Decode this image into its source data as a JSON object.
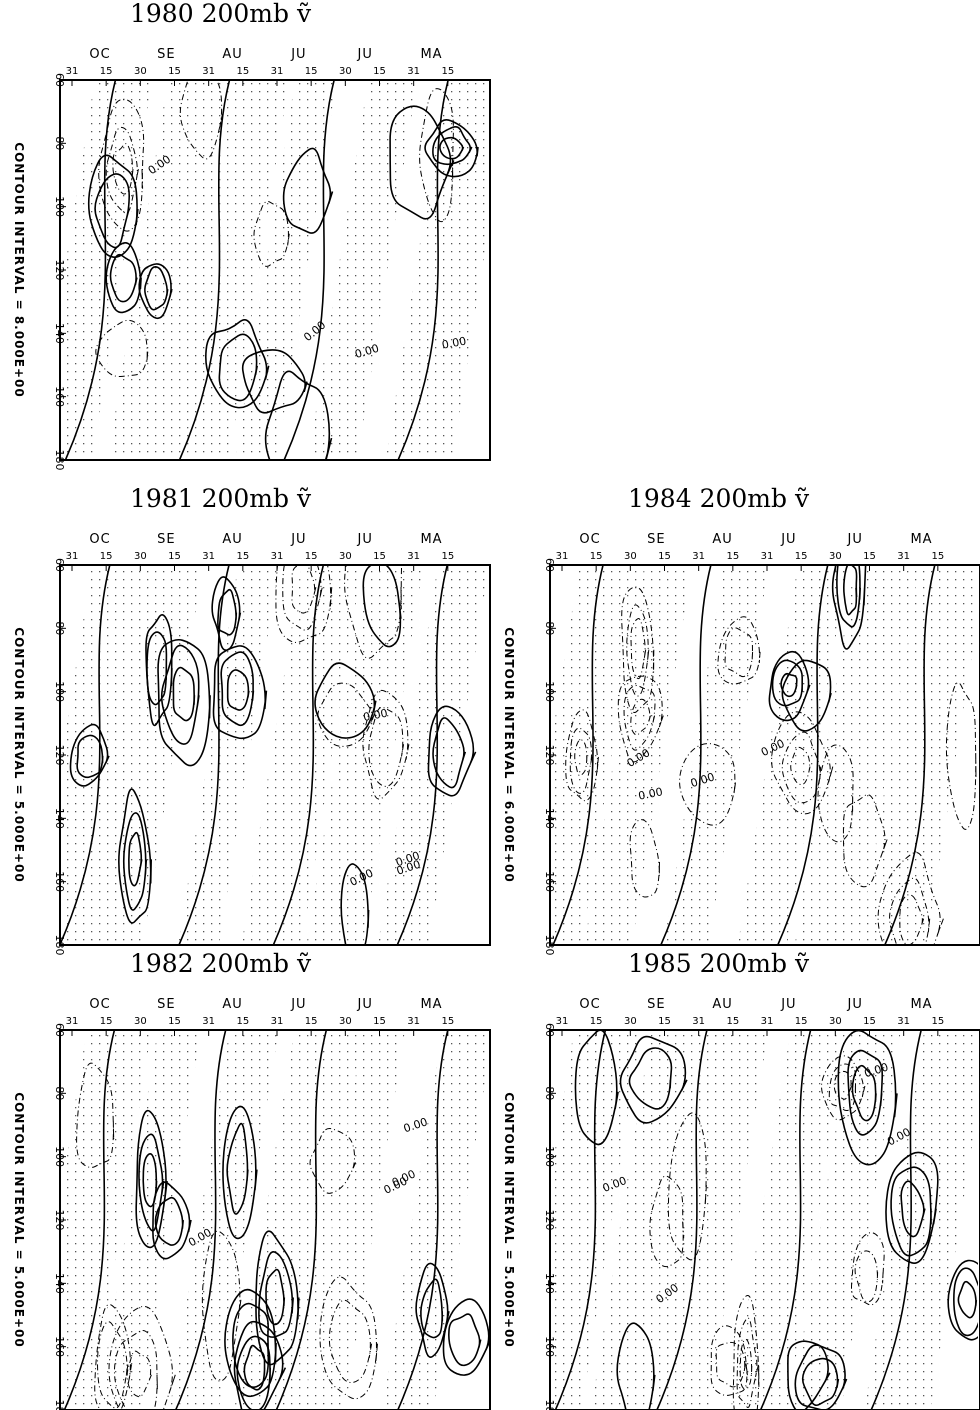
{
  "chart_data": [
    {
      "type": "heatmap",
      "title": "1980 200mb ṽ",
      "month_labels": [
        "OC",
        "SE",
        "AU",
        "JU",
        "JU",
        "MA"
      ],
      "day_labels": [
        "31",
        "15",
        "30",
        "15",
        "31",
        "15",
        "31",
        "15",
        "30",
        "15",
        "31",
        "15"
      ],
      "y_tick_labels": [
        "60",
        "80",
        "100",
        "120",
        "140",
        "160",
        "180"
      ],
      "ylim": [
        60,
        180
      ],
      "contour_interval_label": "CONTOUR INTERVAL = 8.000E+00",
      "contour_interval": 8.0,
      "zero_contour_label": "0.00",
      "shading": "stippled negative regions"
    },
    {
      "type": "heatmap",
      "title": "1981 200mb ṽ",
      "month_labels": [
        "OC",
        "SE",
        "AU",
        "JU",
        "JU",
        "MA"
      ],
      "day_labels": [
        "31",
        "15",
        "30",
        "15",
        "31",
        "15",
        "31",
        "15",
        "30",
        "15",
        "31",
        "15"
      ],
      "y_tick_labels": [
        "60",
        "80",
        "100",
        "120",
        "140",
        "160",
        "180"
      ],
      "ylim": [
        60,
        180
      ],
      "contour_interval_label": "CONTOUR INTERVAL = 5.000E+00",
      "contour_interval": 5.0,
      "zero_contour_label": "0.00",
      "shading": "stippled negative regions"
    },
    {
      "type": "heatmap",
      "title": "1984 200mb ṽ",
      "month_labels": [
        "OC",
        "SE",
        "AU",
        "JU",
        "JU",
        "MA"
      ],
      "day_labels": [
        "31",
        "15",
        "30",
        "15",
        "31",
        "15",
        "31",
        "15",
        "30",
        "15",
        "31",
        "15"
      ],
      "y_tick_labels": [
        "60",
        "80",
        "100",
        "120",
        "140",
        "160",
        "180"
      ],
      "ylim": [
        60,
        180
      ],
      "contour_interval_label": "CONTOUR INTERVAL = 6.000E+00",
      "contour_interval": 6.0,
      "zero_contour_label": "0.00",
      "shading": "stippled negative regions"
    },
    {
      "type": "heatmap",
      "title": "1982 200mb ṽ",
      "month_labels": [
        "OC",
        "SE",
        "AU",
        "JU",
        "JU",
        "MA"
      ],
      "day_labels": [
        "31",
        "15",
        "30",
        "15",
        "31",
        "15",
        "31",
        "15",
        "30",
        "15",
        "31",
        "15"
      ],
      "y_tick_labels": [
        "60",
        "80",
        "100",
        "120",
        "140",
        "160",
        "180"
      ],
      "ylim": [
        60,
        180
      ],
      "contour_interval_label": "CONTOUR INTERVAL = 5.000E+00",
      "contour_interval": 5.0,
      "zero_contour_label": "0.00",
      "shading": "stippled negative regions"
    },
    {
      "type": "heatmap",
      "title": "1985 200mb ṽ",
      "month_labels": [
        "OC",
        "SE",
        "AU",
        "JU",
        "JU",
        "MA"
      ],
      "day_labels": [
        "31",
        "15",
        "30",
        "15",
        "31",
        "15",
        "31",
        "15",
        "30",
        "15",
        "31",
        "15"
      ],
      "y_tick_labels": [
        "60",
        "80",
        "100",
        "120",
        "140",
        "160",
        "180"
      ],
      "ylim": [
        60,
        180
      ],
      "contour_interval_label": "CONTOUR INTERVAL = 5.000E+00",
      "contour_interval": 5.0,
      "zero_contour_label": "0.00",
      "shading": "stippled negative regions"
    }
  ]
}
